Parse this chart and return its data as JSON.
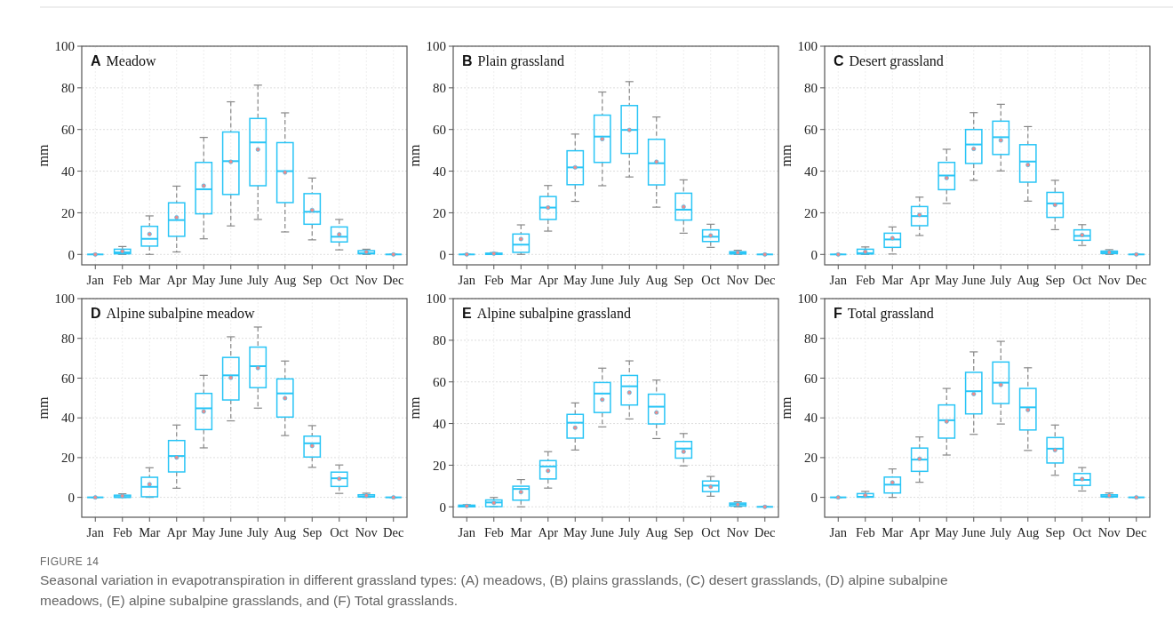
{
  "chart_data": [
    {
      "type": "box",
      "title": "A Meadow",
      "ylabel": "mm",
      "categories": [
        "Jan",
        "Feb",
        "Mar",
        "Apr",
        "May",
        "June",
        "July",
        "Aug",
        "Sep",
        "Oct",
        "Nov",
        "Dec"
      ],
      "ylim": [
        -5,
        100
      ],
      "yticks": [
        0,
        20,
        40,
        60,
        80,
        100
      ],
      "grid": true,
      "color": "#29c5f6",
      "annotations": [
        "FIGURE 14",
        "Seasonal variation in evapotranspiration in different grassland types: (A) meadows, (B) plains grasslands, (C) desert grasslands, (D) alpine subalpine meadows, (E) alpine subalpine grasslands, and (F) Total grasslands."
      ],
      "boxes": [
        {
          "low": 0,
          "q1": 0,
          "median": 0,
          "q3": 0,
          "high": 0,
          "mean": 0
        },
        {
          "low": 0,
          "q1": 0.3,
          "median": 1,
          "q3": 2.5,
          "high": 3.8,
          "mean": 1.5
        },
        {
          "low": 0,
          "q1": 4,
          "median": 7.5,
          "q3": 13.5,
          "high": 18.5,
          "mean": 9.8
        },
        {
          "low": 1.2,
          "q1": 8.7,
          "median": 16.5,
          "q3": 24.8,
          "high": 32.8,
          "mean": 17.8
        },
        {
          "low": 7.5,
          "q1": 19.5,
          "median": 31.3,
          "q3": 44.2,
          "high": 56.2,
          "mean": 33
        },
        {
          "low": 13.7,
          "q1": 28.8,
          "median": 44.8,
          "q3": 58.8,
          "high": 73.3,
          "mean": 44.5
        },
        {
          "low": 16.8,
          "q1": 33,
          "median": 53.8,
          "q3": 65.3,
          "high": 81.3,
          "mean": 50.4
        },
        {
          "low": 10.8,
          "q1": 24.9,
          "median": 40,
          "q3": 53.7,
          "high": 68,
          "mean": 39.4
        },
        {
          "low": 7,
          "q1": 14.5,
          "median": 20.5,
          "q3": 29.2,
          "high": 36.7,
          "mean": 21.3
        },
        {
          "low": 2.2,
          "q1": 6,
          "median": 8.5,
          "q3": 13.2,
          "high": 16.8,
          "mean": 9.6
        },
        {
          "low": 0,
          "q1": 0.3,
          "median": 0.6,
          "q3": 1.8,
          "high": 2.5,
          "mean": 1.2
        },
        {
          "low": 0,
          "q1": 0,
          "median": 0,
          "q3": 0,
          "high": 0,
          "mean": 0
        }
      ]
    },
    {
      "type": "box",
      "title": "B Plain grassland",
      "ylabel": "mm",
      "categories": [
        "Jan",
        "Feb",
        "Mar",
        "Apr",
        "May",
        "June",
        "July",
        "Aug",
        "Sep",
        "Oct",
        "Nov",
        "Dec"
      ],
      "ylim": [
        -5,
        100
      ],
      "yticks": [
        0,
        20,
        40,
        60,
        80,
        100
      ],
      "grid": true,
      "color": "#29c5f6",
      "boxes": [
        {
          "low": 0,
          "q1": 0,
          "median": 0,
          "q3": 0,
          "high": 0,
          "mean": 0
        },
        {
          "low": 0,
          "q1": 0,
          "median": 0.2,
          "q3": 0.6,
          "high": 0.9,
          "mean": 0.4
        },
        {
          "low": 0,
          "q1": 1,
          "median": 4.7,
          "q3": 9.8,
          "high": 14.2,
          "mean": 7.4
        },
        {
          "low": 11.2,
          "q1": 16.8,
          "median": 22.5,
          "q3": 27.8,
          "high": 33.1,
          "mean": 22.5
        },
        {
          "low": 25.5,
          "q1": 33.5,
          "median": 41.8,
          "q3": 49.8,
          "high": 57.8,
          "mean": 41.8
        },
        {
          "low": 33,
          "q1": 44.2,
          "median": 56.6,
          "q3": 66.9,
          "high": 78,
          "mean": 55.4
        },
        {
          "low": 37.2,
          "q1": 48.5,
          "median": 59.8,
          "q3": 71.5,
          "high": 83,
          "mean": 59.8
        },
        {
          "low": 22.7,
          "q1": 33.4,
          "median": 43.8,
          "q3": 55.3,
          "high": 66,
          "mean": 44.5
        },
        {
          "low": 10.2,
          "q1": 16.5,
          "median": 21.5,
          "q3": 29.4,
          "high": 35.8,
          "mean": 22.9
        },
        {
          "low": 3.4,
          "q1": 6.2,
          "median": 8.5,
          "q3": 11.8,
          "high": 14.5,
          "mean": 9.1
        },
        {
          "low": 0,
          "q1": 0.2,
          "median": 0.6,
          "q3": 1.3,
          "high": 2,
          "mean": 0.9
        },
        {
          "low": 0,
          "q1": 0,
          "median": 0,
          "q3": 0,
          "high": 0,
          "mean": 0
        }
      ]
    },
    {
      "type": "box",
      "title": "C Desert grassland",
      "ylabel": "mm",
      "categories": [
        "Jan",
        "Feb",
        "Mar",
        "Apr",
        "May",
        "June",
        "July",
        "Aug",
        "Sep",
        "Oct",
        "Nov",
        "Dec"
      ],
      "ylim": [
        -5,
        100
      ],
      "yticks": [
        0,
        20,
        40,
        60,
        80,
        100
      ],
      "grid": true,
      "color": "#29c5f6",
      "boxes": [
        {
          "low": 0,
          "q1": 0,
          "median": 0,
          "q3": 0,
          "high": 0,
          "mean": 0
        },
        {
          "low": 0,
          "q1": 0.2,
          "median": 0.6,
          "q3": 2.5,
          "high": 3.6,
          "mean": 1.3
        },
        {
          "low": 0.2,
          "q1": 3.4,
          "median": 7.2,
          "q3": 10.2,
          "high": 13.2,
          "mean": 7.8
        },
        {
          "low": 9.1,
          "q1": 13.8,
          "median": 18.4,
          "q3": 23,
          "high": 27.5,
          "mean": 19
        },
        {
          "low": 24.5,
          "q1": 31.1,
          "median": 37.9,
          "q3": 44.2,
          "high": 50.5,
          "mean": 36.7
        },
        {
          "low": 35.6,
          "q1": 43.7,
          "median": 52.8,
          "q3": 60,
          "high": 68.1,
          "mean": 50.7
        },
        {
          "low": 40.1,
          "q1": 48,
          "median": 56.3,
          "q3": 64,
          "high": 72.1,
          "mean": 54.8
        },
        {
          "low": 25.6,
          "q1": 34.7,
          "median": 44.6,
          "q3": 52.7,
          "high": 61.4,
          "mean": 43
        },
        {
          "low": 11.9,
          "q1": 17.8,
          "median": 24.5,
          "q3": 29.8,
          "high": 35.6,
          "mean": 23.8
        },
        {
          "low": 4.3,
          "q1": 6.8,
          "median": 8.9,
          "q3": 11.8,
          "high": 14.3,
          "mean": 9.3
        },
        {
          "low": 0,
          "q1": 0.4,
          "median": 0.9,
          "q3": 1.6,
          "high": 2.3,
          "mean": 1
        },
        {
          "low": 0,
          "q1": 0,
          "median": 0,
          "q3": 0,
          "high": 0,
          "mean": 0
        }
      ]
    },
    {
      "type": "box",
      "title": "D Alpine subalpine meadow",
      "ylabel": "mm",
      "categories": [
        "Jan",
        "Feb",
        "Mar",
        "Apr",
        "May",
        "June",
        "July",
        "Aug",
        "Sep",
        "Oct",
        "Nov",
        "Dec"
      ],
      "ylim": [
        -10,
        100
      ],
      "yticks": [
        0,
        20,
        40,
        60,
        80,
        100
      ],
      "grid": true,
      "color": "#29c5f6",
      "boxes": [
        {
          "low": 0,
          "q1": 0,
          "median": 0,
          "q3": 0,
          "high": 0,
          "mean": 0
        },
        {
          "low": 0,
          "q1": 0,
          "median": 0.2,
          "q3": 1.1,
          "high": 1.8,
          "mean": 0.7
        },
        {
          "low": 0,
          "q1": 0.3,
          "median": 5.3,
          "q3": 10.1,
          "high": 14.9,
          "mean": 6.6
        },
        {
          "low": 4.6,
          "q1": 12.8,
          "median": 20.8,
          "q3": 28.6,
          "high": 36.4,
          "mean": 20.1
        },
        {
          "low": 24.9,
          "q1": 34.1,
          "median": 44.8,
          "q3": 52.3,
          "high": 61.4,
          "mean": 43.2
        },
        {
          "low": 38.5,
          "q1": 49,
          "median": 61.4,
          "q3": 70.4,
          "high": 80.8,
          "mean": 60.2
        },
        {
          "low": 44.9,
          "q1": 55.2,
          "median": 66,
          "q3": 75.6,
          "high": 85.7,
          "mean": 65.1
        },
        {
          "low": 31.1,
          "q1": 40.4,
          "median": 52.3,
          "q3": 59.6,
          "high": 68.6,
          "mean": 49.9
        },
        {
          "low": 15.1,
          "q1": 20.3,
          "median": 27.2,
          "q3": 30.8,
          "high": 36.1,
          "mean": 25.9
        },
        {
          "low": 2,
          "q1": 5.5,
          "median": 9.6,
          "q3": 12.7,
          "high": 16.3,
          "mean": 9.4
        },
        {
          "low": 0,
          "q1": 0.2,
          "median": 0.5,
          "q3": 1.3,
          "high": 2.1,
          "mean": 0.9
        },
        {
          "low": 0,
          "q1": 0,
          "median": 0,
          "q3": 0,
          "high": 0,
          "mean": 0
        }
      ]
    },
    {
      "type": "box",
      "title": "E Alpine subalpine grassland",
      "ylabel": "mm",
      "categories": [
        "Jan",
        "Feb",
        "Mar",
        "Apr",
        "May",
        "June",
        "July",
        "Aug",
        "Sep",
        "Oct",
        "Nov",
        "Dec"
      ],
      "ylim": [
        -5,
        100
      ],
      "yticks": [
        0,
        20,
        40,
        60,
        80,
        100
      ],
      "grid": true,
      "color": "#29c5f6",
      "boxes": [
        {
          "low": 0,
          "q1": 0,
          "median": 0.3,
          "q3": 0.8,
          "high": 1,
          "mean": 0.4
        },
        {
          "low": 0,
          "q1": 0.1,
          "median": 2.1,
          "q3": 3.3,
          "high": 4.5,
          "mean": 1.9
        },
        {
          "low": 0,
          "q1": 3.2,
          "median": 8.6,
          "q3": 9.9,
          "high": 13.1,
          "mean": 7.1
        },
        {
          "low": 9,
          "q1": 13.4,
          "median": 19.4,
          "q3": 22.2,
          "high": 26.5,
          "mean": 17.3
        },
        {
          "low": 27.3,
          "q1": 33,
          "median": 40.4,
          "q3": 44.4,
          "high": 49.9,
          "mean": 38
        },
        {
          "low": 38.4,
          "q1": 45.3,
          "median": 54.4,
          "q3": 59.7,
          "high": 66.6,
          "mean": 51.5
        },
        {
          "low": 42.2,
          "q1": 48.9,
          "median": 57.9,
          "q3": 63.1,
          "high": 70.1,
          "mean": 54.9
        },
        {
          "low": 32.8,
          "q1": 39.8,
          "median": 48.1,
          "q3": 54.1,
          "high": 60.9,
          "mean": 45.3
        },
        {
          "low": 19.7,
          "q1": 23.4,
          "median": 28,
          "q3": 31.4,
          "high": 35.2,
          "mean": 26.5
        },
        {
          "low": 5.1,
          "q1": 7.3,
          "median": 10.2,
          "q3": 12.4,
          "high": 14.6,
          "mean": 9.6
        },
        {
          "low": 0,
          "q1": 0.4,
          "median": 1.2,
          "q3": 1.8,
          "high": 2.4,
          "mean": 1.1
        },
        {
          "low": 0,
          "q1": 0,
          "median": 0,
          "q3": 0,
          "high": 0,
          "mean": 0
        }
      ]
    },
    {
      "type": "box",
      "title": "F Total grassland",
      "ylabel": "mm",
      "categories": [
        "Jan",
        "Feb",
        "Mar",
        "Apr",
        "May",
        "June",
        "July",
        "Aug",
        "Sep",
        "Oct",
        "Nov",
        "Dec"
      ],
      "ylim": [
        -10,
        100
      ],
      "yticks": [
        0,
        20,
        40,
        60,
        80,
        100
      ],
      "grid": true,
      "color": "#29c5f6",
      "boxes": [
        {
          "low": 0,
          "q1": 0,
          "median": 0,
          "q3": 0,
          "high": 0,
          "mean": 0
        },
        {
          "low": 0,
          "q1": 0.1,
          "median": 0.3,
          "q3": 1.9,
          "high": 3,
          "mean": 1.1
        },
        {
          "low": 0,
          "q1": 2.2,
          "median": 6.4,
          "q3": 10.2,
          "high": 14.3,
          "mean": 7.5
        },
        {
          "low": 7.6,
          "q1": 13.1,
          "median": 19,
          "q3": 24.8,
          "high": 30.4,
          "mean": 19.4
        },
        {
          "low": 21.3,
          "q1": 29.8,
          "median": 38.8,
          "q3": 46.5,
          "high": 54.8,
          "mean": 38.2
        },
        {
          "low": 31.7,
          "q1": 42,
          "median": 53.4,
          "q3": 62.9,
          "high": 73.2,
          "mean": 52
        },
        {
          "low": 36.9,
          "q1": 47.2,
          "median": 57.7,
          "q3": 68.1,
          "high": 78.5,
          "mean": 56.6
        },
        {
          "low": 23.6,
          "q1": 33.9,
          "median": 45.3,
          "q3": 54.8,
          "high": 65.2,
          "mean": 44
        },
        {
          "low": 11.1,
          "q1": 17.3,
          "median": 24.5,
          "q3": 30.1,
          "high": 36.4,
          "mean": 23.8
        },
        {
          "low": 3.2,
          "q1": 6,
          "median": 8.8,
          "q3": 12,
          "high": 15,
          "mean": 9.2
        },
        {
          "low": 0,
          "q1": 0.2,
          "median": 0.6,
          "q3": 1.3,
          "high": 2.2,
          "mean": 0.9
        },
        {
          "low": 0,
          "q1": 0,
          "median": 0,
          "q3": 0,
          "high": 0,
          "mean": 0
        }
      ]
    }
  ]
}
